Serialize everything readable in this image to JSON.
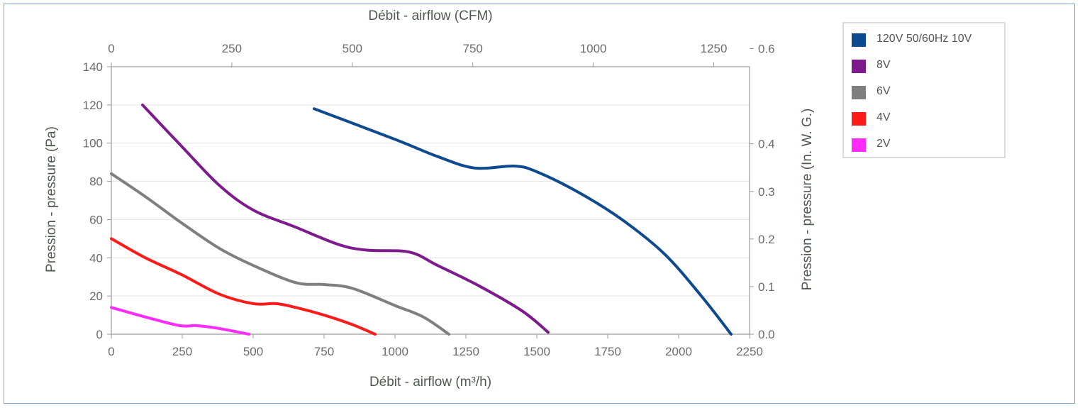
{
  "chart_data": {
    "type": "line",
    "xlabel_bottom": "Débit - airflow (m³/h)",
    "xlabel_top": "Débit - airflow (CFM)",
    "ylabel_left": "Pression - pressure (Pa)",
    "ylabel_right": "Pression - pressure (In. W. G.)",
    "xlim": [
      0,
      2250
    ],
    "ylim": [
      0,
      140
    ],
    "x2lim": [
      0,
      1324.3
    ],
    "y2lim": [
      0,
      0.562
    ],
    "x_ticks": [
      "0",
      "250",
      "500",
      "750",
      "1000",
      "1250",
      "1500",
      "1750",
      "2000",
      "2250"
    ],
    "y_ticks": [
      "0",
      "20",
      "40",
      "60",
      "80",
      "100",
      "120",
      "140"
    ],
    "x2_ticks": [
      {
        "label": "0",
        "value": 0
      },
      {
        "label": "250",
        "value": 250
      },
      {
        "label": "500",
        "value": 500
      },
      {
        "label": "750",
        "value": 750
      },
      {
        "label": "1000",
        "value": 1000
      },
      {
        "label": "1250",
        "value": 1250
      }
    ],
    "y2_ticks": [
      {
        "label": "0.0",
        "value": 0.0
      },
      {
        "label": "0.1",
        "value": 0.1
      },
      {
        "label": "0.2",
        "value": 0.2
      },
      {
        "label": "0.3",
        "value": 0.3
      },
      {
        "label": "0.4",
        "value": 0.4
      },
      {
        "label": "0.6",
        "value": 0.6
      }
    ],
    "grid": "horizontal",
    "legend_position": "top-right",
    "series": [
      {
        "name": "120V 50/60Hz 10V",
        "color": "#0e4a8f",
        "x": [
          715,
          1000,
          1150,
          1280,
          1420,
          1500,
          1650,
          1800,
          1950,
          2080,
          2185
        ],
        "y": [
          118,
          102,
          93,
          87,
          88,
          85,
          74,
          60,
          42,
          20,
          0
        ]
      },
      {
        "name": "8V",
        "color": "#7d1a8c",
        "x": [
          110,
          250,
          380,
          500,
          650,
          800,
          900,
          1050,
          1150,
          1300,
          1450,
          1540
        ],
        "y": [
          120,
          98,
          78,
          65,
          56,
          47,
          44,
          43,
          36,
          25,
          12,
          1
        ]
      },
      {
        "name": "6V",
        "color": "#7f7f7f",
        "x": [
          0,
          120,
          250,
          380,
          500,
          650,
          750,
          850,
          1000,
          1100,
          1190
        ],
        "y": [
          84,
          72,
          58,
          45,
          36,
          27,
          26,
          24,
          15,
          9,
          0
        ]
      },
      {
        "name": "4V",
        "color": "#ff1a1a",
        "x": [
          0,
          120,
          250,
          380,
          500,
          580,
          650,
          750,
          850,
          930
        ],
        "y": [
          50,
          40,
          31,
          21,
          16,
          16,
          14,
          10,
          5,
          0
        ]
      },
      {
        "name": "2V",
        "color": "#ff2bff",
        "x": [
          0,
          120,
          240,
          300,
          380,
          485
        ],
        "y": [
          14,
          9,
          4.5,
          4.5,
          3,
          0
        ]
      }
    ]
  }
}
